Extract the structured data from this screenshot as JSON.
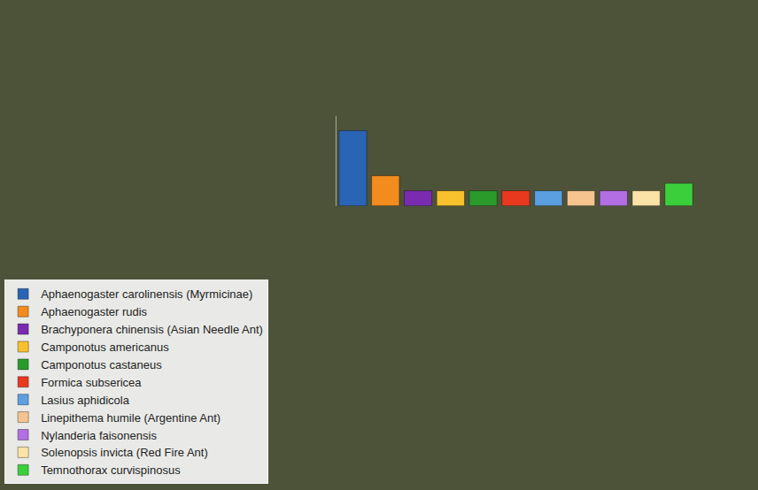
{
  "chart_data": {
    "type": "bar",
    "series": [
      {
        "name": "Aphaenogaster carolinensis (Myrmicinae)",
        "color": "#2a64b4",
        "values": [
          10
        ]
      },
      {
        "name": "Aphaenogaster rudis",
        "color": "#f28c1e",
        "values": [
          4
        ]
      },
      {
        "name": "Brachyponera chinensis (Asian Needle Ant)",
        "color": "#7a2bb0",
        "values": [
          2
        ]
      },
      {
        "name": "Camponotus americanus",
        "color": "#f7c12d",
        "values": [
          2
        ]
      },
      {
        "name": "Camponotus castaneus",
        "color": "#2a9a2a",
        "values": [
          2
        ]
      },
      {
        "name": "Formica subsericea",
        "color": "#e8391e",
        "values": [
          2
        ]
      },
      {
        "name": "Lasius aphidicola",
        "color": "#5b9fe0",
        "values": [
          2
        ]
      },
      {
        "name": "Linepithema humile (Argentine Ant)",
        "color": "#f5c48f",
        "values": [
          2
        ]
      },
      {
        "name": "Nylanderia faisonensis",
        "color": "#b26ee3",
        "values": [
          2
        ]
      },
      {
        "name": "Solenopsis invicta (Red Fire Ant)",
        "color": "#fbe2a6",
        "values": [
          2
        ]
      },
      {
        "name": "Temnothorax curvispinosus",
        "color": "#3ccf3c",
        "values": [
          3
        ]
      }
    ],
    "ylim": [
      0,
      12
    ],
    "yticks": [],
    "tick_labels": false,
    "grid": false,
    "legend": "bottom left"
  }
}
